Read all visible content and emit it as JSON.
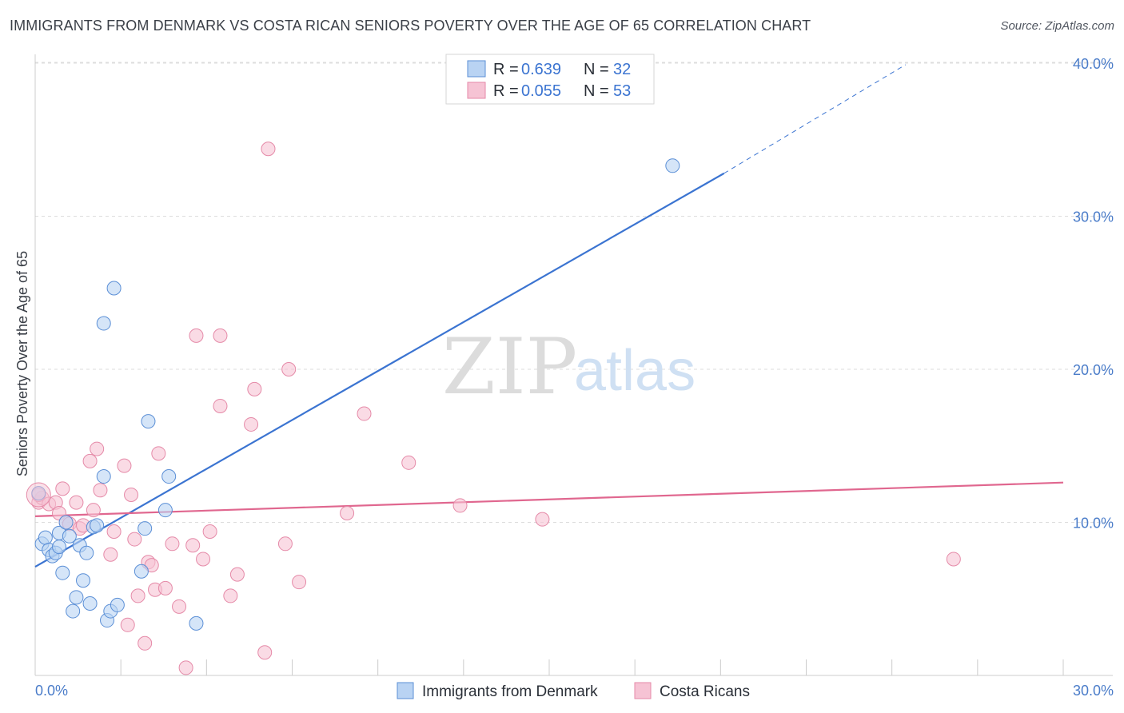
{
  "title": "IMMIGRANTS FROM DENMARK VS COSTA RICAN SENIORS POVERTY OVER THE AGE OF 65 CORRELATION CHART",
  "source": "Source: ZipAtlas.com",
  "watermark": {
    "zip": "ZIP",
    "atlas": "atlas"
  },
  "colors": {
    "blue": "#3b74d1",
    "blue_fill": "#b9d3f3",
    "pink": "#e0678f",
    "pink_fill": "#f6c3d4",
    "grid": "#dddddd",
    "tick_text": "#4a7cc9"
  },
  "legend_box": {
    "rows": [
      {
        "r_label": "R =",
        "r_value": "0.639",
        "n_label": "N =",
        "n_value": "32"
      },
      {
        "r_label": "R =",
        "r_value": "0.055",
        "n_label": "N =",
        "n_value": "53"
      }
    ]
  },
  "bottom_legend": [
    "Immigrants from Denmark",
    "Costa Ricans"
  ],
  "chart_data": {
    "type": "scatter",
    "title": "IMMIGRANTS FROM DENMARK VS COSTA RICAN SENIORS POVERTY OVER THE AGE OF 65 CORRELATION CHART",
    "xlabel": "",
    "ylabel": "Seniors Poverty Over the Age of 65",
    "xlim": [
      0,
      30
    ],
    "ylim": [
      0,
      41
    ],
    "x_tick_labels": [
      "0.0%",
      "30.0%"
    ],
    "y_ticks": [
      10,
      20,
      30,
      40
    ],
    "y_tick_labels": [
      "10.0%",
      "20.0%",
      "30.0%",
      "40.0%"
    ],
    "legend_position": "top-center",
    "series": [
      {
        "name": "Immigrants from Denmark",
        "color": "#3b74d1",
        "R": 0.639,
        "N": 32,
        "trend": {
          "x0": 0,
          "y0": 7.1,
          "x1": 20.1,
          "y1": 32.8,
          "dash_to_x": 25.4,
          "dash_to_y": 39.9
        },
        "points": [
          [
            0.1,
            11.9
          ],
          [
            0.2,
            8.6
          ],
          [
            0.3,
            9.0
          ],
          [
            0.4,
            8.2
          ],
          [
            0.5,
            7.8
          ],
          [
            0.6,
            8.0
          ],
          [
            0.7,
            9.3
          ],
          [
            0.7,
            8.4
          ],
          [
            0.8,
            6.7
          ],
          [
            0.9,
            10.0
          ],
          [
            1.0,
            9.1
          ],
          [
            1.1,
            4.2
          ],
          [
            1.2,
            5.1
          ],
          [
            1.3,
            8.5
          ],
          [
            1.4,
            6.2
          ],
          [
            1.5,
            8.0
          ],
          [
            1.6,
            4.7
          ],
          [
            1.7,
            9.7
          ],
          [
            1.8,
            9.8
          ],
          [
            2.0,
            13.0
          ],
          [
            2.1,
            3.6
          ],
          [
            2.2,
            4.2
          ],
          [
            2.3,
            25.3
          ],
          [
            2.4,
            4.6
          ],
          [
            2.0,
            23.0
          ],
          [
            3.1,
            6.8
          ],
          [
            3.2,
            9.6
          ],
          [
            3.3,
            16.6
          ],
          [
            3.8,
            10.8
          ],
          [
            3.9,
            13.0
          ],
          [
            4.7,
            3.4
          ],
          [
            18.6,
            33.3
          ]
        ]
      },
      {
        "name": "Costa Ricans",
        "color": "#e0678f",
        "R": 0.055,
        "N": 53,
        "trend": {
          "x0": 0,
          "y0": 10.4,
          "x1": 30,
          "y1": 12.6
        },
        "points": [
          [
            0.1,
            11.3
          ],
          [
            0.2,
            11.6
          ],
          [
            0.4,
            11.2
          ],
          [
            0.6,
            11.3
          ],
          [
            0.7,
            10.6
          ],
          [
            0.8,
            12.2
          ],
          [
            0.9,
            10.0
          ],
          [
            1.0,
            9.9
          ],
          [
            1.2,
            11.3
          ],
          [
            1.3,
            9.6
          ],
          [
            1.4,
            9.8
          ],
          [
            1.6,
            14.0
          ],
          [
            1.7,
            10.8
          ],
          [
            1.8,
            14.8
          ],
          [
            1.9,
            12.1
          ],
          [
            2.2,
            7.9
          ],
          [
            2.3,
            9.4
          ],
          [
            2.6,
            13.7
          ],
          [
            2.7,
            3.3
          ],
          [
            2.8,
            11.8
          ],
          [
            2.9,
            8.9
          ],
          [
            3.0,
            5.2
          ],
          [
            3.2,
            2.1
          ],
          [
            3.3,
            7.4
          ],
          [
            3.4,
            7.2
          ],
          [
            3.5,
            5.6
          ],
          [
            3.6,
            14.5
          ],
          [
            3.8,
            5.7
          ],
          [
            4.0,
            8.6
          ],
          [
            4.2,
            4.5
          ],
          [
            4.4,
            0.5
          ],
          [
            4.6,
            8.5
          ],
          [
            4.7,
            22.2
          ],
          [
            4.9,
            7.6
          ],
          [
            5.1,
            9.4
          ],
          [
            5.4,
            22.2
          ],
          [
            5.4,
            17.6
          ],
          [
            5.7,
            5.2
          ],
          [
            5.9,
            6.6
          ],
          [
            6.3,
            16.4
          ],
          [
            6.4,
            18.7
          ],
          [
            6.7,
            1.5
          ],
          [
            6.8,
            34.4
          ],
          [
            7.3,
            8.6
          ],
          [
            7.4,
            20.0
          ],
          [
            7.7,
            6.1
          ],
          [
            9.1,
            10.6
          ],
          [
            9.6,
            17.1
          ],
          [
            10.9,
            13.9
          ],
          [
            12.4,
            11.1
          ],
          [
            14.8,
            10.2
          ],
          [
            26.8,
            7.6
          ],
          [
            0.1,
            11.8
          ]
        ]
      }
    ]
  }
}
